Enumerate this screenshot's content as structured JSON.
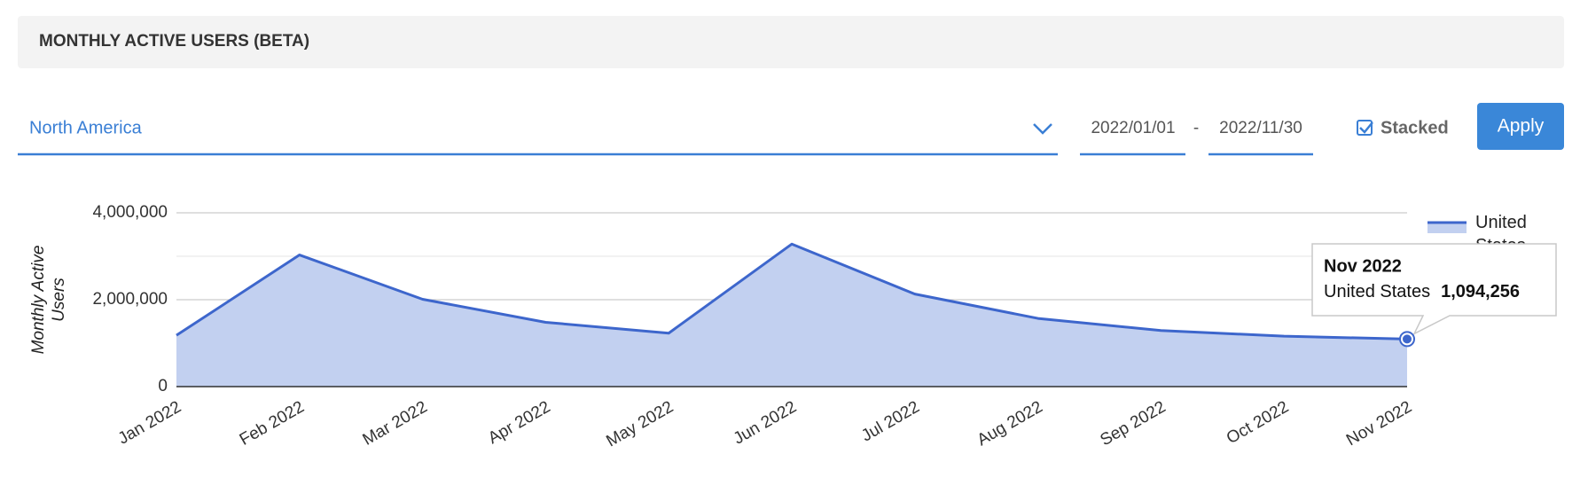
{
  "header": {
    "title": "MONTHLY ACTIVE USERS (BETA)"
  },
  "controls": {
    "region": "North America",
    "start_date": "2022/01/01",
    "date_separator": "-",
    "end_date": "2022/11/30",
    "stacked_label": "Stacked",
    "stacked": true,
    "apply_label": "Apply"
  },
  "chart_data": {
    "type": "area",
    "y_label": "Monthly Active Users",
    "categories": [
      "Jan 2022",
      "Feb 2022",
      "Mar 2022",
      "Apr 2022",
      "May 2022",
      "Jun 2022",
      "Jul 2022",
      "Aug 2022",
      "Sep 2022",
      "Oct 2022",
      "Nov 2022"
    ],
    "series": [
      {
        "name": "United States",
        "color": "#3d66cc",
        "fill": "#c2d0f0",
        "values": [
          1180000,
          3030000,
          2010000,
          1480000,
          1230000,
          3280000,
          2130000,
          1570000,
          1290000,
          1160000,
          1094256
        ],
        "value_labels": [
          null,
          null,
          null,
          null,
          null,
          null,
          null,
          null,
          null,
          null,
          "1,094,256"
        ]
      }
    ],
    "ylim": [
      0,
      4000000
    ],
    "yticks": [
      {
        "value": 0,
        "label": "0"
      },
      {
        "value": 2000000,
        "label": "2,000,000"
      },
      {
        "value": 4000000,
        "label": "4,000,000"
      }
    ],
    "minor_gridlines": [
      1000000,
      3000000
    ],
    "grid": true,
    "legend": "right",
    "tooltip_index": 10
  }
}
